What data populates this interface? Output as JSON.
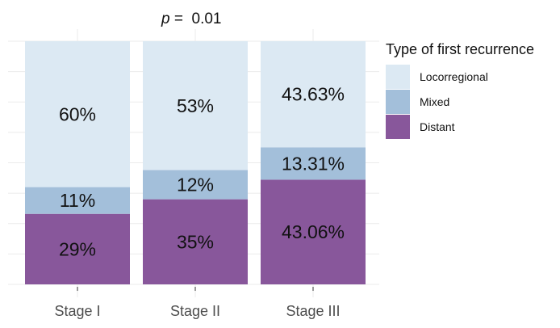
{
  "chart_data": {
    "type": "bar",
    "stacked": true,
    "percent": true,
    "annotation": {
      "prefix": "p",
      "text": " =  0.01"
    },
    "categories": [
      "Stage I",
      "Stage II",
      "Stage III"
    ],
    "series": [
      {
        "name": "Distant",
        "color": "#88579b",
        "values": [
          29,
          35,
          43.06
        ],
        "labels": [
          "29%",
          "35%",
          "43.06%"
        ]
      },
      {
        "name": "Mixed",
        "color": "#a3bfda",
        "values": [
          11,
          12,
          13.31
        ],
        "labels": [
          "11%",
          "12%",
          "13.31%"
        ]
      },
      {
        "name": "Locorregional",
        "color": "#dce9f3",
        "values": [
          60,
          53,
          43.63
        ],
        "labels": [
          "60%",
          "53%",
          "43.63%"
        ]
      }
    ],
    "ylim": [
      0,
      100
    ],
    "grid": true,
    "legend": {
      "title": "Type of first recurrence",
      "position": "right",
      "order": [
        "Locorregional",
        "Mixed",
        "Distant"
      ]
    }
  }
}
